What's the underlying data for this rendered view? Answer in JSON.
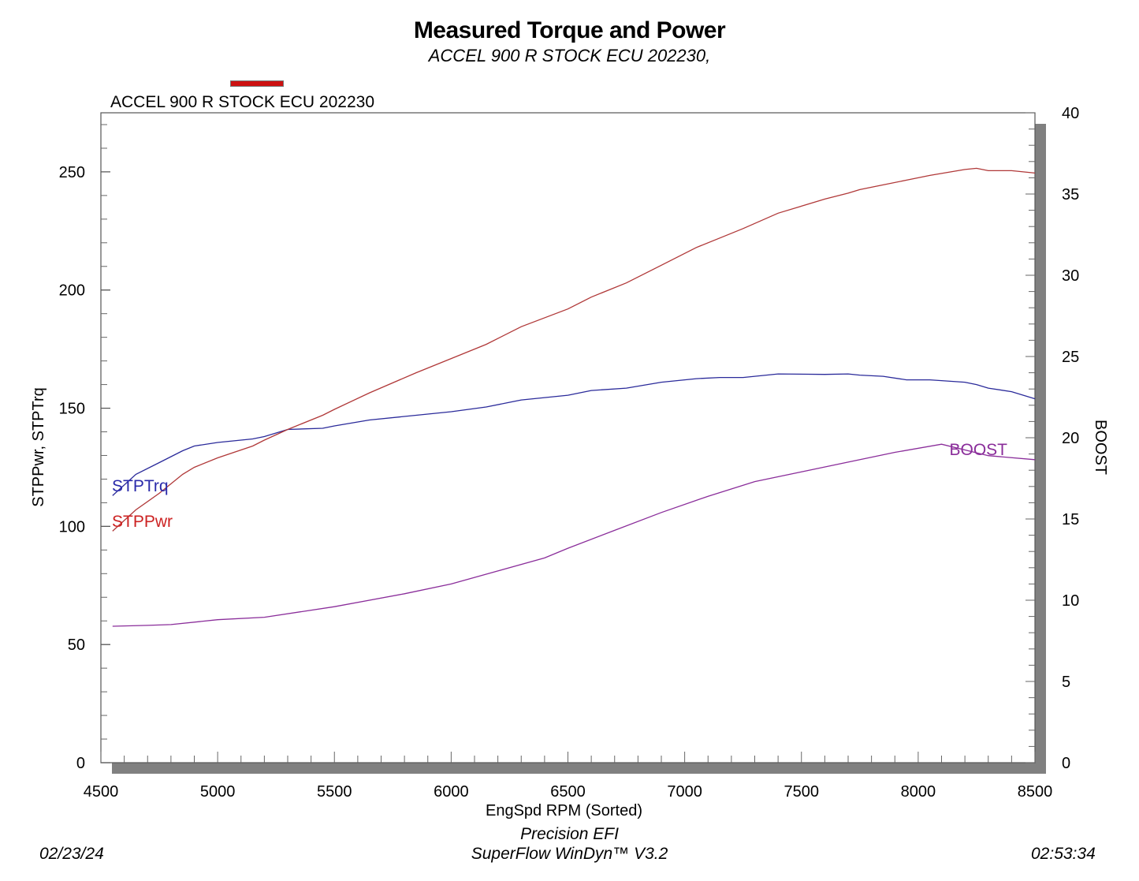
{
  "header": {
    "title": "Measured Torque and Power",
    "subtitle": "ACCEL 900 R STOCK ECU 202230,"
  },
  "legend": {
    "label": "ACCEL 900 R STOCK ECU 202230",
    "color": "#cc1111"
  },
  "footer": {
    "brand": "Precision EFI",
    "software": "SuperFlow WinDyn™ V3.2",
    "date": "02/23/24",
    "time": "02:53:34"
  },
  "chart_data": {
    "type": "line",
    "xlabel": "EngSpd RPM    (Sorted)",
    "ylabel_left": "STPPwr, STPTrq",
    "ylabel_right": "BOOST",
    "xlim": [
      4500,
      8500
    ],
    "ylim_left": [
      0,
      275
    ],
    "ylim_right": [
      0,
      40
    ],
    "x_ticks": [
      4500,
      5000,
      5500,
      6000,
      6500,
      7000,
      7500,
      8000,
      8500
    ],
    "y_left_ticks": [
      0,
      50,
      100,
      150,
      200,
      250
    ],
    "y_right_ticks": [
      0,
      5,
      10,
      15,
      20,
      25,
      30,
      35,
      40
    ],
    "grid": false,
    "series": [
      {
        "name": "STPTrq",
        "axis": "left",
        "color": "#2a2a9a",
        "x": [
          4550,
          4650,
          4750,
          4850,
          4900,
          5000,
          5150,
          5200,
          5300,
          5450,
          5500,
          5650,
          5850,
          6000,
          6150,
          6300,
          6500,
          6600,
          6750,
          6900,
          7050,
          7150,
          7250,
          7400,
          7600,
          7700,
          7750,
          7850,
          7950,
          8050,
          8200,
          8250,
          8300,
          8400,
          8500
        ],
        "values": [
          113,
          122,
          127,
          132,
          134,
          135.5,
          137,
          138,
          141,
          141.5,
          142.5,
          145,
          147,
          148.5,
          150.5,
          153.5,
          155.5,
          157.5,
          158.5,
          161,
          162.5,
          163,
          163,
          164.5,
          164.3,
          164.5,
          164,
          163.5,
          162,
          162,
          161,
          160,
          158.5,
          157,
          154
        ]
      },
      {
        "name": "STPPwr",
        "axis": "left",
        "color": "#b03838",
        "x": [
          4550,
          4650,
          4750,
          4850,
          4900,
          5000,
          5150,
          5200,
          5300,
          5450,
          5500,
          5650,
          5850,
          6000,
          6150,
          6300,
          6500,
          6600,
          6750,
          6900,
          7050,
          7150,
          7250,
          7400,
          7600,
          7700,
          7750,
          7850,
          7950,
          8050,
          8200,
          8250,
          8300,
          8400,
          8500
        ],
        "values": [
          98,
          107,
          114,
          122,
          125,
          129,
          134,
          136.5,
          141,
          147,
          149.5,
          156.5,
          165,
          171,
          177,
          184.5,
          192,
          197,
          203,
          210.5,
          218,
          222,
          226,
          232.5,
          238.5,
          241,
          242.5,
          244.5,
          246.5,
          248.5,
          251,
          251.5,
          250.5,
          250.5,
          249.5
        ]
      },
      {
        "name": "BOOST",
        "axis": "right",
        "color": "#8a2d9a",
        "x": [
          4550,
          4700,
          4800,
          5000,
          5200,
          5500,
          5800,
          6000,
          6200,
          6400,
          6500,
          6700,
          6900,
          7100,
          7300,
          7500,
          7700,
          7900,
          8100,
          8300,
          8500
        ],
        "values": [
          8.4,
          8.45,
          8.5,
          8.8,
          8.95,
          9.6,
          10.4,
          11,
          11.8,
          12.6,
          13.2,
          14.3,
          15.4,
          16.4,
          17.3,
          17.9,
          18.5,
          19.1,
          19.6,
          18.9,
          18.65
        ]
      }
    ],
    "annotations": [
      {
        "text": "STPTrq",
        "color": "#2a2aaa"
      },
      {
        "text": "STPPwr",
        "color": "#cc2222"
      },
      {
        "text": "BOOST",
        "color": "#8a2d9a"
      }
    ]
  }
}
